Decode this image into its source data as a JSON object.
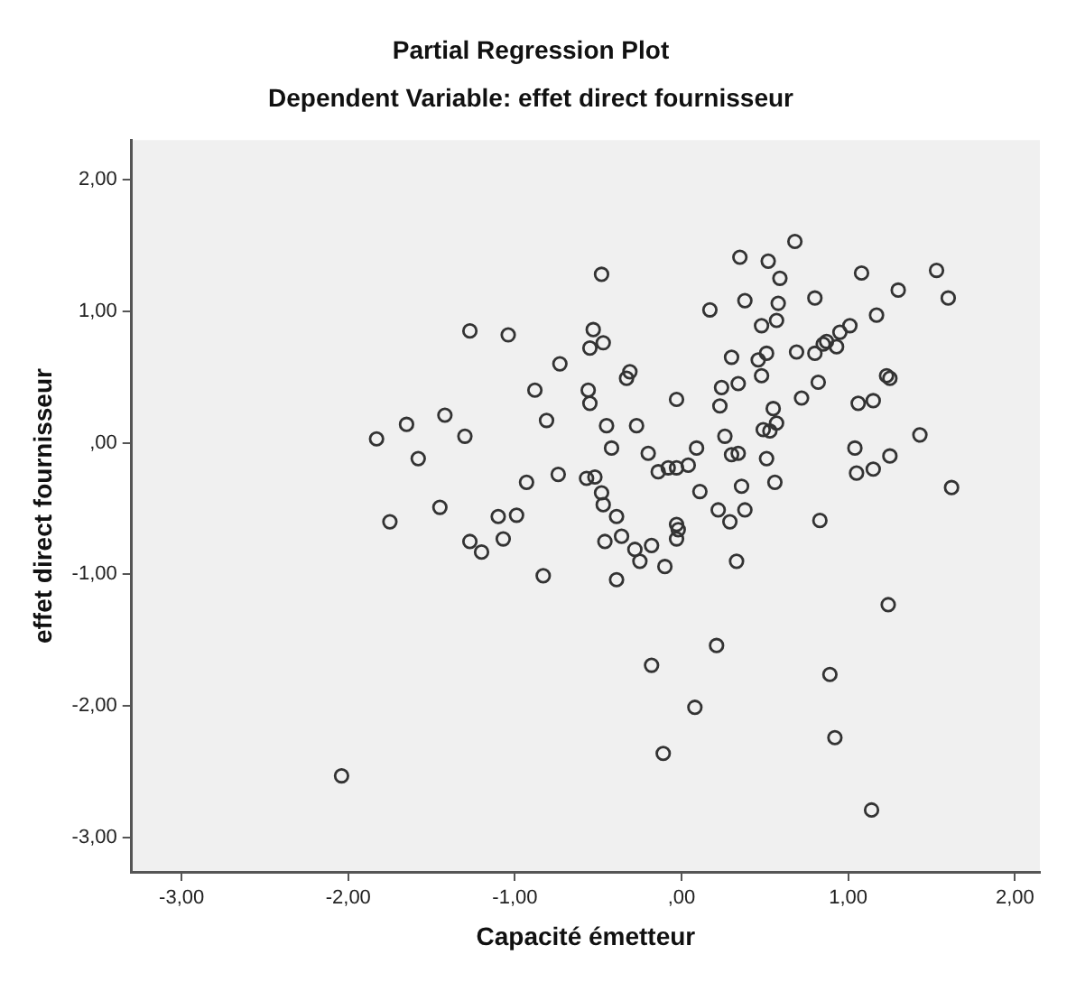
{
  "chart_data": {
    "type": "scatter",
    "title": "Partial Regression Plot",
    "subtitle": "Dependent Variable: effet direct fournisseur",
    "xlabel": "Capacité émetteur",
    "ylabel": "effet direct fournisseur",
    "xlim": [
      -3.3,
      2.15
    ],
    "ylim": [
      -3.26,
      2.3
    ],
    "xticks": [
      {
        "value": -3,
        "label": "-3,00"
      },
      {
        "value": -2,
        "label": "-2,00"
      },
      {
        "value": -1,
        "label": "-1,00"
      },
      {
        "value": 0,
        "label": ",00"
      },
      {
        "value": 1,
        "label": "1,00"
      },
      {
        "value": 2,
        "label": "2,00"
      }
    ],
    "yticks": [
      {
        "value": -3,
        "label": "-3,00"
      },
      {
        "value": -2,
        "label": "-2,00"
      },
      {
        "value": -1,
        "label": "-1,00"
      },
      {
        "value": 0,
        "label": ",00"
      },
      {
        "value": 1,
        "label": "1,00"
      },
      {
        "value": 2,
        "label": "2,00"
      }
    ],
    "grid": false,
    "legend": false,
    "marker": "circle",
    "series": [
      {
        "color": "#333333",
        "x": [
          -1.27,
          -1.04,
          -0.73,
          -0.88,
          -0.81,
          -1.42,
          -1.65,
          -1.83,
          -1.3,
          -1.58,
          -0.93,
          -0.74,
          -0.57,
          -1.45,
          -1.75,
          -1.1,
          -0.99,
          -0.48,
          0.68,
          0.35,
          0.52,
          0.59,
          1.08,
          1.53,
          1.6,
          1.3,
          0.8,
          0.38,
          0.17,
          0.58,
          0.57,
          0.48,
          1.17,
          1.01,
          0.95,
          0.87,
          0.85,
          0.93,
          0.8,
          0.69,
          0.51,
          0.46,
          0.3,
          0.48,
          0.34,
          0.24,
          0.23,
          -0.03,
          -0.53,
          -0.55,
          -0.47,
          -0.31,
          -0.33,
          -0.56,
          -0.55,
          -0.45,
          -0.27,
          -0.42,
          -0.2,
          0.09,
          -0.14,
          -0.08,
          -0.03,
          0.04,
          0.26,
          0.3,
          0.34,
          0.51,
          0.49,
          0.53,
          0.57,
          0.55,
          0.72,
          0.82,
          1.23,
          1.25,
          1.06,
          1.15,
          1.43,
          1.04,
          1.05,
          1.15,
          1.25,
          1.62,
          -0.52,
          -0.48,
          -0.47,
          -0.39,
          0.11,
          0.36,
          0.56,
          0.22,
          0.38,
          0.29,
          -0.03,
          0.83,
          -0.46,
          -0.36,
          -0.28,
          -0.25,
          -0.18,
          -0.39,
          -0.1,
          -0.03,
          -0.02,
          0.33,
          1.24,
          0.21,
          -0.18,
          0.89,
          0.08,
          0.92,
          -0.11,
          1.14,
          -2.04,
          -1.27,
          -1.2,
          -1.07,
          -0.83
        ],
        "values": [
          0.85,
          0.82,
          0.6,
          0.4,
          0.17,
          0.21,
          0.14,
          0.03,
          0.05,
          -0.12,
          -0.3,
          -0.24,
          -0.27,
          -0.49,
          -0.6,
          -0.56,
          -0.55,
          1.28,
          1.53,
          1.41,
          1.38,
          1.25,
          1.29,
          1.31,
          1.1,
          1.16,
          1.1,
          1.08,
          1.01,
          1.06,
          0.93,
          0.89,
          0.97,
          0.89,
          0.84,
          0.77,
          0.75,
          0.73,
          0.68,
          0.69,
          0.68,
          0.63,
          0.65,
          0.51,
          0.45,
          0.42,
          0.28,
          0.33,
          0.86,
          0.72,
          0.76,
          0.54,
          0.49,
          0.4,
          0.3,
          0.13,
          0.13,
          -0.04,
          -0.08,
          -0.04,
          -0.22,
          -0.19,
          -0.19,
          -0.17,
          0.05,
          -0.09,
          -0.08,
          -0.12,
          0.1,
          0.09,
          0.15,
          0.26,
          0.34,
          0.46,
          0.51,
          0.49,
          0.3,
          0.32,
          0.06,
          -0.04,
          -0.23,
          -0.2,
          -0.1,
          -0.34,
          -0.26,
          -0.38,
          -0.47,
          -0.56,
          -0.37,
          -0.33,
          -0.3,
          -0.51,
          -0.51,
          -0.6,
          -0.62,
          -0.59,
          -0.75,
          -0.71,
          -0.81,
          -0.9,
          -0.78,
          -1.04,
          -0.94,
          -0.73,
          -0.66,
          -0.9,
          -1.23,
          -1.54,
          -1.69,
          -1.76,
          -2.01,
          -2.24,
          -2.36,
          -2.79,
          -2.53,
          -0.75,
          -0.83,
          -0.73,
          -1.01
        ]
      }
    ]
  }
}
